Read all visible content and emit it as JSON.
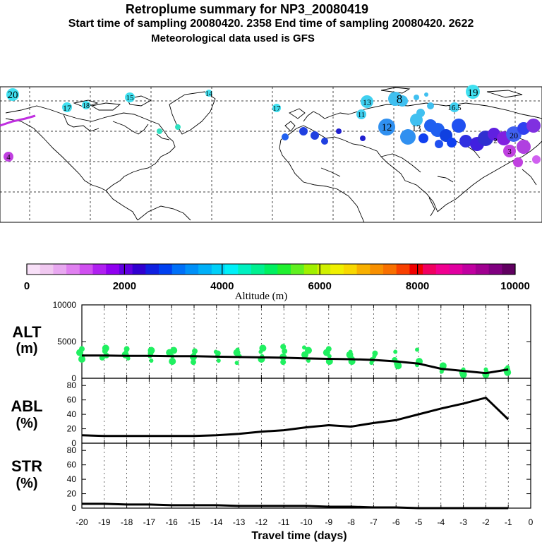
{
  "header": {
    "title": "Retroplume summary for NP3_20080419",
    "sampling_line": "Start time of sampling 20080420.  2358     End time of sampling 20080420.  2622",
    "met_line": "Meteorological data used is GFS"
  },
  "colorbar": {
    "title": "Altitude (m)",
    "ticks": [
      "0",
      "2000",
      "4000",
      "6000",
      "8000",
      "10000"
    ],
    "range": [
      0,
      10000
    ],
    "colors": [
      "#f8e0f8",
      "#f0c8f0",
      "#e8a8f0",
      "#e080f0",
      "#d050f0",
      "#b020f0",
      "#9000f0",
      "#6000e0",
      "#3000d0",
      "#1020e0",
      "#0040f0",
      "#0070f8",
      "#0090f8",
      "#00b0f8",
      "#00d0f8",
      "#00f0f8",
      "#00f0c0",
      "#00f090",
      "#00f060",
      "#20f030",
      "#60f020",
      "#a0f000",
      "#d0f000",
      "#f0f000",
      "#f8d800",
      "#f8b000",
      "#f89000",
      "#f87000",
      "#f84000",
      "#f00000",
      "#f00060",
      "#f00090",
      "#e000a0",
      "#c000a0",
      "#a00090",
      "#800080",
      "#600060"
    ]
  },
  "map": {
    "labels": [
      {
        "text": "20",
        "color": "#40e0f0"
      },
      {
        "text": "17",
        "color": "#40e0f0"
      },
      {
        "text": "18",
        "color": "#40e0f0"
      },
      {
        "text": "15",
        "color": "#40e0f0"
      },
      {
        "text": "14",
        "color": "#40e0f0"
      },
      {
        "text": "17",
        "color": "#40e0f0"
      },
      {
        "text": "19",
        "color": "#40e0f0"
      },
      {
        "text": "13",
        "color": "#40d0f0"
      },
      {
        "text": "8",
        "color": "#40c0f0"
      },
      {
        "text": "16.5",
        "color": "#40d0f0"
      },
      {
        "text": "11",
        "color": "#40d0f0"
      },
      {
        "text": "12",
        "color": "#3090f0"
      },
      {
        "text": "13",
        "color": "#40c0f0"
      },
      {
        "text": "4",
        "color": "#c040e0"
      },
      {
        "text": "3",
        "color": "#c040e0"
      },
      {
        "text": "2",
        "color": "#8020e0"
      },
      {
        "text": "20",
        "color": "#4060f0"
      }
    ]
  },
  "chart_data": [
    {
      "type": "scatter",
      "name": "ALT",
      "label": "ALT",
      "unit": "(m)",
      "x": [
        -20,
        -19,
        -18,
        -17,
        -16,
        -15,
        -14,
        -13,
        -12,
        -11,
        -10,
        -9,
        -8,
        -7,
        -6,
        -5,
        -4,
        -3,
        -2,
        -1
      ],
      "mean_line": [
        3100,
        3100,
        3050,
        3050,
        3000,
        3000,
        2950,
        2900,
        2850,
        2800,
        2700,
        2650,
        2600,
        2500,
        2300,
        2000,
        1300,
        1000,
        700,
        1200
      ],
      "points": [
        [
          -20,
          3500
        ],
        [
          -20,
          3000
        ],
        [
          -20,
          2600
        ],
        [
          -20,
          4000
        ],
        [
          -19,
          3700
        ],
        [
          -19,
          3100
        ],
        [
          -19,
          2800
        ],
        [
          -19,
          4100
        ],
        [
          -18,
          3600
        ],
        [
          -18,
          3200
        ],
        [
          -18,
          2700
        ],
        [
          -18,
          4000
        ],
        [
          -17,
          3400
        ],
        [
          -17,
          3000
        ],
        [
          -17,
          2400
        ],
        [
          -17,
          3800
        ],
        [
          -16,
          3500
        ],
        [
          -16,
          3000
        ],
        [
          -16,
          2300
        ],
        [
          -16,
          3800
        ],
        [
          -15,
          3300
        ],
        [
          -15,
          2900
        ],
        [
          -15,
          2200
        ],
        [
          -15,
          3700
        ],
        [
          -14,
          3400
        ],
        [
          -14,
          3000
        ],
        [
          -14,
          2400
        ],
        [
          -14,
          3600
        ],
        [
          -13,
          3500
        ],
        [
          -13,
          3000
        ],
        [
          -13,
          2100
        ],
        [
          -13,
          3900
        ],
        [
          -12,
          3600
        ],
        [
          -12,
          3000
        ],
        [
          -12,
          2600
        ],
        [
          -12,
          4100
        ],
        [
          -11,
          3700
        ],
        [
          -11,
          2900
        ],
        [
          -11,
          2200
        ],
        [
          -11,
          4300
        ],
        [
          -10,
          3800
        ],
        [
          -10,
          3200
        ],
        [
          -10,
          2400
        ],
        [
          -10,
          4200
        ],
        [
          -9,
          3500
        ],
        [
          -9,
          3000
        ],
        [
          -9,
          2300
        ],
        [
          -9,
          4000
        ],
        [
          -8,
          3200
        ],
        [
          -8,
          2700
        ],
        [
          -8,
          2300
        ],
        [
          -8,
          3600
        ],
        [
          -7,
          3000
        ],
        [
          -7,
          2500
        ],
        [
          -7,
          2100
        ],
        [
          -7,
          3400
        ],
        [
          -6,
          2500
        ],
        [
          -6,
          2000
        ],
        [
          -6,
          1700
        ],
        [
          -6,
          3600
        ],
        [
          -5,
          2300
        ],
        [
          -5,
          1800
        ],
        [
          -5,
          3900
        ],
        [
          -4,
          1700
        ],
        [
          -4,
          1300
        ],
        [
          -4,
          900
        ],
        [
          -3,
          1200
        ],
        [
          -3,
          800
        ],
        [
          -3,
          500
        ],
        [
          -2,
          900
        ],
        [
          -2,
          500
        ],
        [
          -2,
          1200
        ],
        [
          -1,
          1500
        ],
        [
          -1,
          1100
        ],
        [
          -1,
          800
        ]
      ],
      "point_color": "#20f060",
      "ylim": [
        0,
        10000
      ],
      "yticks": [
        0,
        5000,
        10000
      ]
    },
    {
      "type": "line",
      "name": "ABL",
      "label": "ABL",
      "unit": "(%)",
      "x": [
        -20,
        -19,
        -18,
        -17,
        -16,
        -15,
        -14,
        -13,
        -12,
        -11,
        -10,
        -9,
        -8,
        -7,
        -6,
        -5,
        -4,
        -3,
        -2,
        -1
      ],
      "values": [
        11,
        10,
        10,
        10,
        10,
        10,
        11,
        13,
        16,
        18,
        22,
        25,
        23,
        28,
        32,
        40,
        48,
        55,
        63,
        33
      ],
      "ylim": [
        0,
        90
      ],
      "yticks": [
        0,
        20,
        40,
        60,
        80
      ]
    },
    {
      "type": "line",
      "name": "STR",
      "label": "STR",
      "unit": "(%)",
      "x": [
        -20,
        -19,
        -18,
        -17,
        -16,
        -15,
        -14,
        -13,
        -12,
        -11,
        -10,
        -9,
        -8,
        -7,
        -6,
        -5,
        -4,
        -3,
        -2,
        -1
      ],
      "values": [
        6,
        6,
        5,
        5,
        4,
        4,
        4,
        3,
        3,
        3,
        3,
        2,
        2,
        1,
        1,
        0,
        0,
        0,
        0,
        0
      ],
      "ylim": [
        0,
        90
      ],
      "yticks": [
        0,
        20,
        40,
        60,
        80
      ]
    }
  ],
  "xaxis": {
    "title": "Travel time (days)",
    "ticks": [
      "-20",
      "-19",
      "-18",
      "-17",
      "-16",
      "-15",
      "-14",
      "-13",
      "-12",
      "-11",
      "-10",
      "-9",
      "-8",
      "-7",
      "-6",
      "-5",
      "-4",
      "-3",
      "-2",
      "-1",
      "0"
    ]
  }
}
